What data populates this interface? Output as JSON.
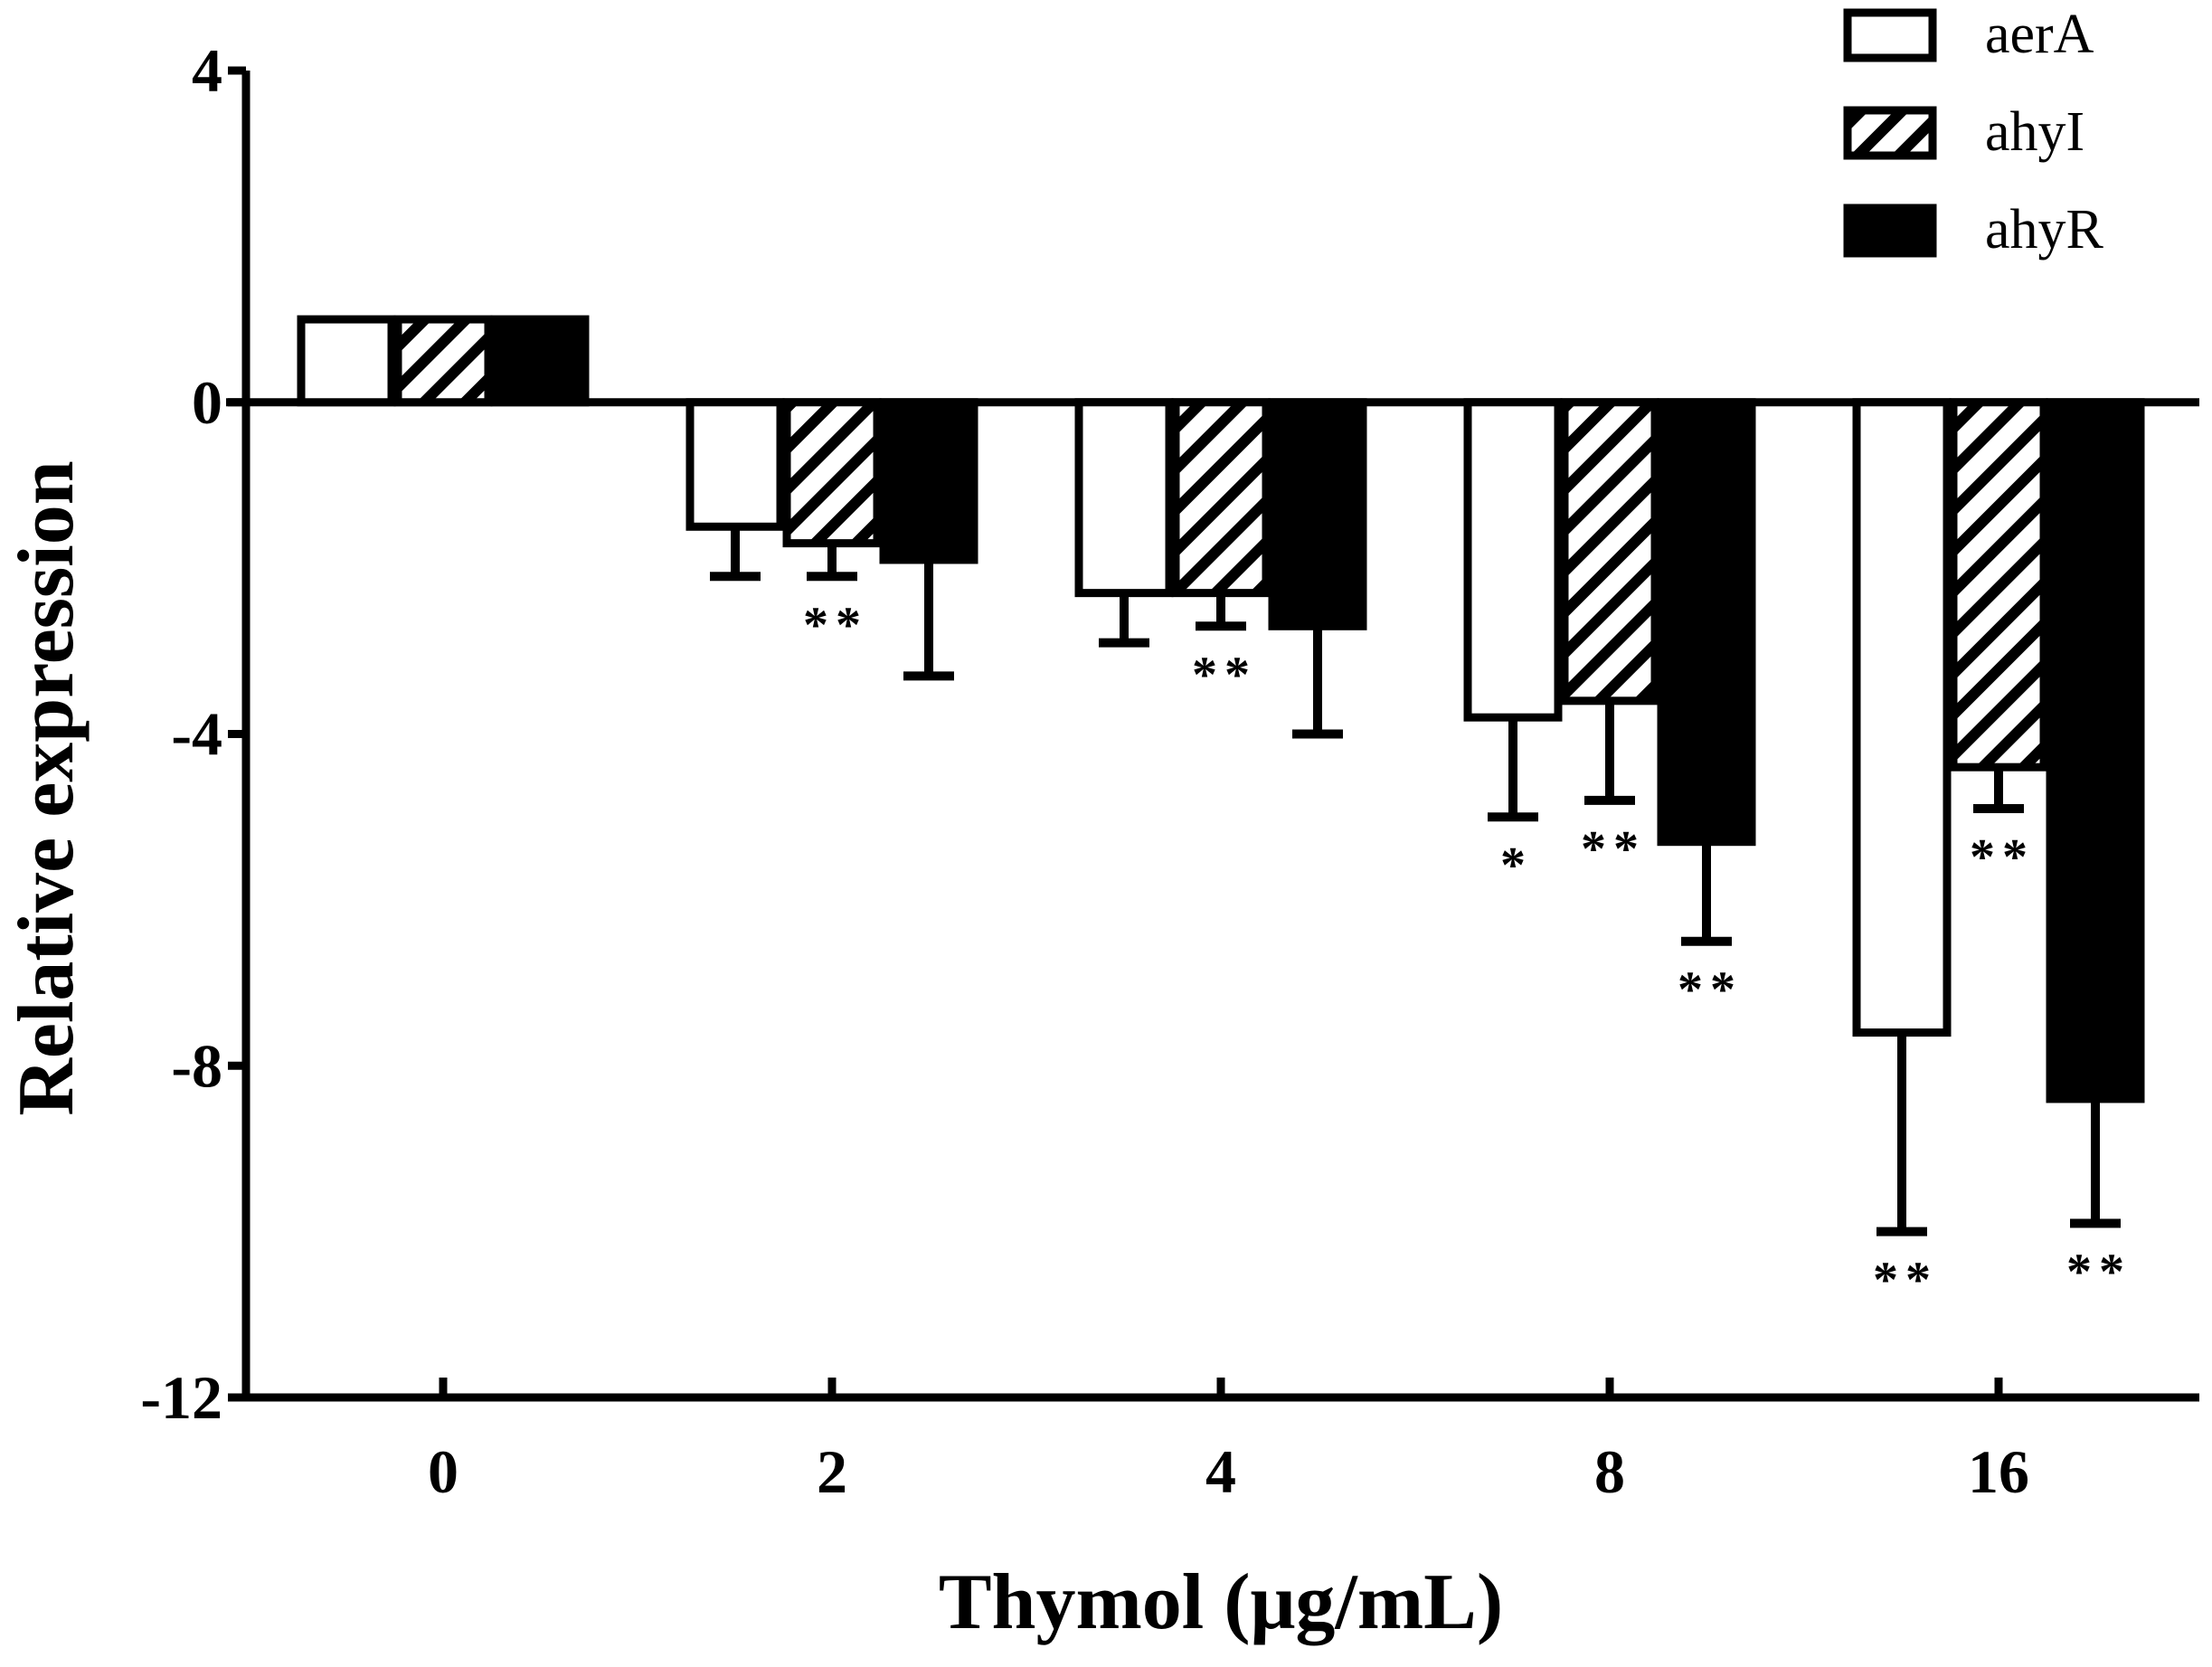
{
  "chart_data": {
    "type": "bar",
    "title": "",
    "xlabel": "Thymol (μg/mL)",
    "ylabel": "Relative expression",
    "ylim": [
      -12,
      4
    ],
    "yticks": [
      4,
      0,
      -4,
      -8,
      -12
    ],
    "ytick_labels": [
      "4",
      "0",
      "-4",
      "-8",
      "-12"
    ],
    "categories": [
      "0",
      "2",
      "4",
      "8",
      "16"
    ],
    "legend_position": "top-right",
    "series": [
      {
        "name": "aerA",
        "fill": "white",
        "values": [
          1.0,
          -1.5,
          -2.3,
          -3.8,
          -7.6
        ],
        "errors": [
          0,
          0.6,
          0.6,
          1.2,
          2.4
        ],
        "significance": [
          "",
          "",
          "",
          "*",
          "**"
        ]
      },
      {
        "name": "ahyI",
        "fill": "hatch",
        "values": [
          1.0,
          -1.7,
          -2.3,
          -3.6,
          -4.4
        ],
        "errors": [
          0,
          0.4,
          0.4,
          1.2,
          0.5
        ],
        "significance": [
          "",
          "**",
          "**",
          "**",
          "**"
        ]
      },
      {
        "name": "ahyR",
        "fill": "black",
        "values": [
          1.0,
          -1.9,
          -2.7,
          -5.3,
          -8.4
        ],
        "errors": [
          0,
          1.4,
          1.3,
          1.2,
          1.5
        ],
        "significance": [
          "",
          "",
          "",
          "**",
          "**"
        ]
      }
    ]
  }
}
